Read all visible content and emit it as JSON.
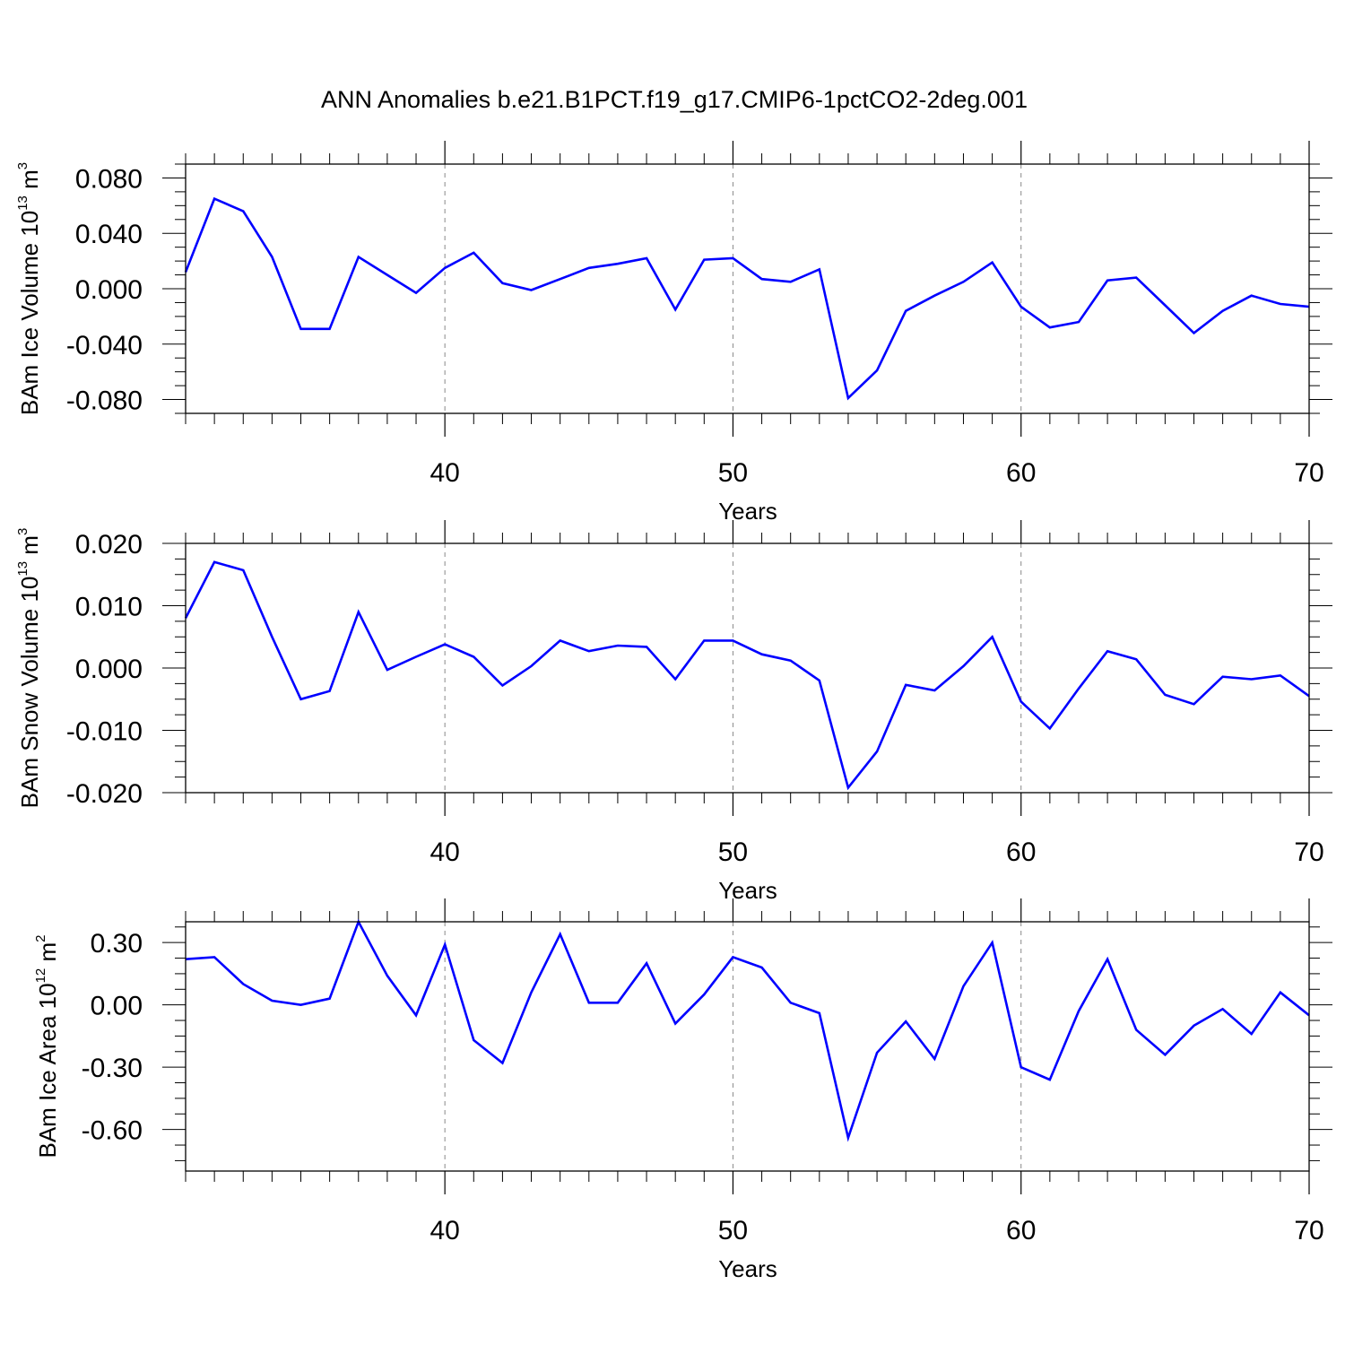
{
  "title": "ANN Anomalies b.e21.B1PCT.f19_g17.CMIP6-1pctCO2-2deg.001",
  "colors": {
    "line": "#0000ff",
    "axis": "#000000",
    "grid": "#888888"
  },
  "chart_data": [
    {
      "type": "line",
      "ylabel": {
        "base": "BAm Ice Volume 10",
        "exp": "13",
        "unit": " m",
        "unit_exp": "3"
      },
      "xlabel": "Years",
      "xlim": [
        31,
        70
      ],
      "ylim": [
        -0.09,
        0.09
      ],
      "xticks": [
        40,
        50,
        60,
        70
      ],
      "xtick_labels": [
        "40",
        "50",
        "60",
        "70"
      ],
      "yticks": [
        0.08,
        0.04,
        0.0,
        -0.04,
        -0.08
      ],
      "ytick_labels": [
        "0.080",
        "0.040",
        "0.000",
        "-0.040",
        "-0.080"
      ],
      "grid": "vertical dashed at major x ticks",
      "x": [
        31,
        32,
        33,
        34,
        35,
        36,
        37,
        38,
        39,
        40,
        41,
        42,
        43,
        44,
        45,
        46,
        47,
        48,
        49,
        50,
        51,
        52,
        53,
        54,
        55,
        56,
        57,
        58,
        59,
        60,
        61,
        62,
        63,
        64,
        65,
        66,
        67,
        68,
        69,
        70
      ],
      "y": [
        0.012,
        0.065,
        0.056,
        0.023,
        -0.029,
        -0.029,
        0.023,
        0.01,
        -0.003,
        0.015,
        0.026,
        0.004,
        -0.001,
        0.007,
        0.015,
        0.018,
        0.022,
        -0.015,
        0.021,
        0.022,
        0.007,
        0.005,
        0.014,
        -0.079,
        -0.059,
        -0.016,
        -0.005,
        0.005,
        0.019,
        -0.013,
        -0.028,
        -0.024,
        0.006,
        0.008,
        -0.012,
        -0.032,
        -0.016,
        -0.005,
        -0.011,
        -0.013
      ]
    },
    {
      "type": "line",
      "ylabel": {
        "base": "BAm Snow Volume 10",
        "exp": "13",
        "unit": " m",
        "unit_exp": "3"
      },
      "xlabel": "Years",
      "xlim": [
        31,
        70
      ],
      "ylim": [
        -0.02,
        0.02
      ],
      "xticks": [
        40,
        50,
        60,
        70
      ],
      "xtick_labels": [
        "40",
        "50",
        "60",
        "70"
      ],
      "yticks": [
        0.02,
        0.01,
        0.0,
        -0.01,
        -0.02
      ],
      "ytick_labels": [
        "0.020",
        "0.010",
        "0.000",
        "-0.010",
        "-0.020"
      ],
      "grid": "vertical dashed at major x ticks",
      "x": [
        31,
        32,
        33,
        34,
        35,
        36,
        37,
        38,
        39,
        40,
        41,
        42,
        43,
        44,
        45,
        46,
        47,
        48,
        49,
        50,
        51,
        52,
        53,
        54,
        55,
        56,
        57,
        58,
        59,
        60,
        61,
        62,
        63,
        64,
        65,
        66,
        67,
        68,
        69,
        70
      ],
      "y": [
        0.008,
        0.017,
        0.0157,
        0.005,
        -0.005,
        -0.0037,
        0.009,
        -0.0003,
        0.0018,
        0.0038,
        0.0018,
        -0.0028,
        0.0003,
        0.0044,
        0.0027,
        0.0036,
        0.0034,
        -0.0018,
        0.0044,
        0.0044,
        0.0022,
        0.0012,
        -0.002,
        -0.0192,
        -0.0134,
        -0.0027,
        -0.0036,
        0.0003,
        0.005,
        -0.0054,
        -0.0097,
        -0.0033,
        0.0027,
        0.0014,
        -0.0043,
        -0.0058,
        -0.0014,
        -0.0018,
        -0.0012,
        -0.0045
      ]
    },
    {
      "type": "line",
      "ylabel": {
        "base": "BAm Ice Area 10",
        "exp": "12",
        "unit": " m",
        "unit_exp": "2"
      },
      "xlabel": "Years",
      "xlim": [
        31,
        70
      ],
      "ylim": [
        -0.8,
        0.4
      ],
      "xticks": [
        40,
        50,
        60,
        70
      ],
      "xtick_labels": [
        "40",
        "50",
        "60",
        "70"
      ],
      "yticks": [
        0.3,
        0.0,
        -0.3,
        -0.6
      ],
      "ytick_labels": [
        "0.30",
        "0.00",
        "-0.30",
        "-0.60"
      ],
      "grid": "vertical dashed at major x ticks",
      "x": [
        31,
        32,
        33,
        34,
        35,
        36,
        37,
        38,
        39,
        40,
        41,
        42,
        43,
        44,
        45,
        46,
        47,
        48,
        49,
        50,
        51,
        52,
        53,
        54,
        55,
        56,
        57,
        58,
        59,
        60,
        61,
        62,
        63,
        64,
        65,
        66,
        67,
        68,
        69,
        70
      ],
      "y": [
        0.22,
        0.23,
        0.1,
        0.02,
        0.0,
        0.03,
        0.4,
        0.14,
        -0.05,
        0.29,
        -0.17,
        -0.28,
        0.06,
        0.34,
        0.01,
        0.01,
        0.2,
        -0.09,
        0.05,
        0.23,
        0.18,
        0.01,
        -0.04,
        -0.64,
        -0.23,
        -0.08,
        -0.26,
        0.09,
        0.3,
        -0.3,
        -0.36,
        -0.03,
        0.22,
        -0.12,
        -0.24,
        -0.1,
        -0.02,
        -0.14,
        0.06,
        -0.05
      ]
    }
  ]
}
